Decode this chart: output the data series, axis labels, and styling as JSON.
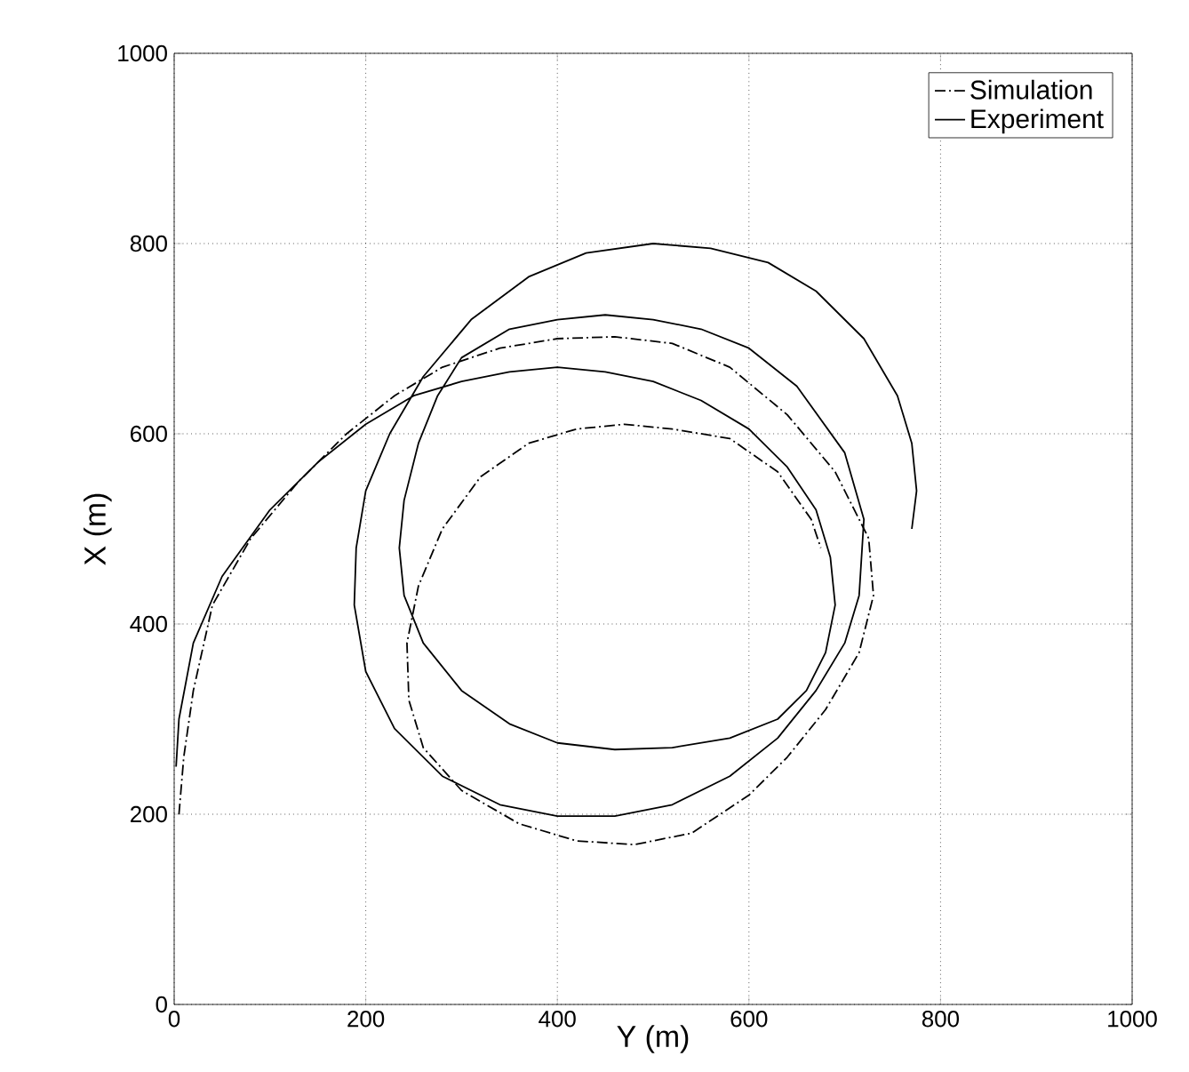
{
  "chart_data": {
    "type": "line",
    "xlabel": "Y (m)",
    "ylabel": "X (m)",
    "xlim": [
      0,
      1000
    ],
    "ylim": [
      0,
      1000
    ],
    "xticks": [
      0,
      200,
      400,
      600,
      800,
      1000
    ],
    "yticks": [
      0,
      200,
      400,
      600,
      800,
      1000
    ],
    "grid": true,
    "legend": "top right",
    "series": [
      {
        "name": "Simulation",
        "color": "#000000",
        "line_style": "dashed",
        "x": [
          5,
          10,
          20,
          40,
          80,
          130,
          180,
          230,
          280,
          340,
          400,
          460,
          520,
          580,
          640,
          690,
          725,
          730,
          715,
          680,
          640,
          600,
          540,
          480,
          420,
          360,
          300,
          260,
          245,
          243,
          255,
          280,
          320,
          370,
          420,
          470,
          520,
          580,
          630,
          665,
          675
        ],
        "values": [
          200,
          260,
          330,
          420,
          490,
          550,
          600,
          640,
          670,
          690,
          700,
          702,
          695,
          670,
          620,
          560,
          490,
          430,
          370,
          310,
          260,
          220,
          180,
          168,
          172,
          190,
          225,
          270,
          320,
          380,
          440,
          500,
          555,
          590,
          605,
          610,
          605,
          595,
          560,
          510,
          480
        ]
      },
      {
        "name": "Experiment",
        "color": "#000000",
        "line_style": "solid",
        "x": [
          2,
          5,
          20,
          50,
          100,
          150,
          200,
          250,
          300,
          350,
          400,
          450,
          500,
          550,
          600,
          640,
          670,
          685,
          690,
          680,
          660,
          630,
          580,
          520,
          460,
          400,
          350,
          300,
          260,
          240,
          235,
          240,
          255,
          275,
          300,
          350,
          400,
          450,
          500,
          550,
          600,
          650,
          700,
          720,
          715,
          700,
          670,
          630,
          580,
          520,
          460,
          400,
          340,
          280,
          230,
          200,
          188,
          190,
          200,
          225,
          260,
          310,
          370,
          430,
          500,
          560,
          620,
          670,
          720,
          755,
          770,
          775,
          770
        ],
        "values": [
          250,
          300,
          380,
          450,
          520,
          570,
          610,
          640,
          655,
          665,
          670,
          665,
          655,
          635,
          605,
          565,
          520,
          470,
          420,
          370,
          330,
          300,
          280,
          270,
          268,
          275,
          295,
          330,
          380,
          430,
          480,
          530,
          590,
          640,
          680,
          710,
          720,
          725,
          720,
          710,
          690,
          650,
          580,
          510,
          430,
          380,
          330,
          280,
          240,
          210,
          198,
          198,
          210,
          240,
          290,
          350,
          420,
          480,
          540,
          600,
          660,
          720,
          765,
          790,
          800,
          795,
          780,
          750,
          700,
          640,
          590,
          540,
          500
        ]
      }
    ]
  }
}
